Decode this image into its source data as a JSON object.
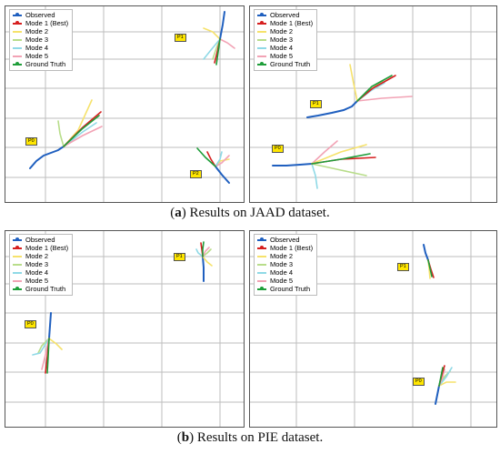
{
  "legend": {
    "items": [
      {
        "label": "Observed",
        "color": "#1f5fbf"
      },
      {
        "label": "Mode 1 (Best)",
        "color": "#d61f1f"
      },
      {
        "label": "Mode 2",
        "color": "#f6e26b"
      },
      {
        "label": "Mode 3",
        "color": "#b8dd8a"
      },
      {
        "label": "Mode 4",
        "color": "#8fd9e6"
      },
      {
        "label": "Mode 5",
        "color": "#f2a3b5"
      },
      {
        "label": "Ground Truth",
        "color": "#1f9e3a"
      }
    ]
  },
  "captions": {
    "a_letter": "a",
    "a_text": " Results on JAAD dataset.",
    "b_letter": "b",
    "b_text": " Results on PIE dataset."
  },
  "panels": {
    "jaad_left": {
      "tags": [
        "P1",
        "P0",
        "P2"
      ]
    },
    "jaad_right": {
      "tags": [
        "P1",
        "P0"
      ]
    },
    "pie_left": {
      "tags": [
        "P1",
        "P0"
      ]
    },
    "pie_right": {
      "tags": [
        "P1",
        "P0"
      ]
    }
  }
}
